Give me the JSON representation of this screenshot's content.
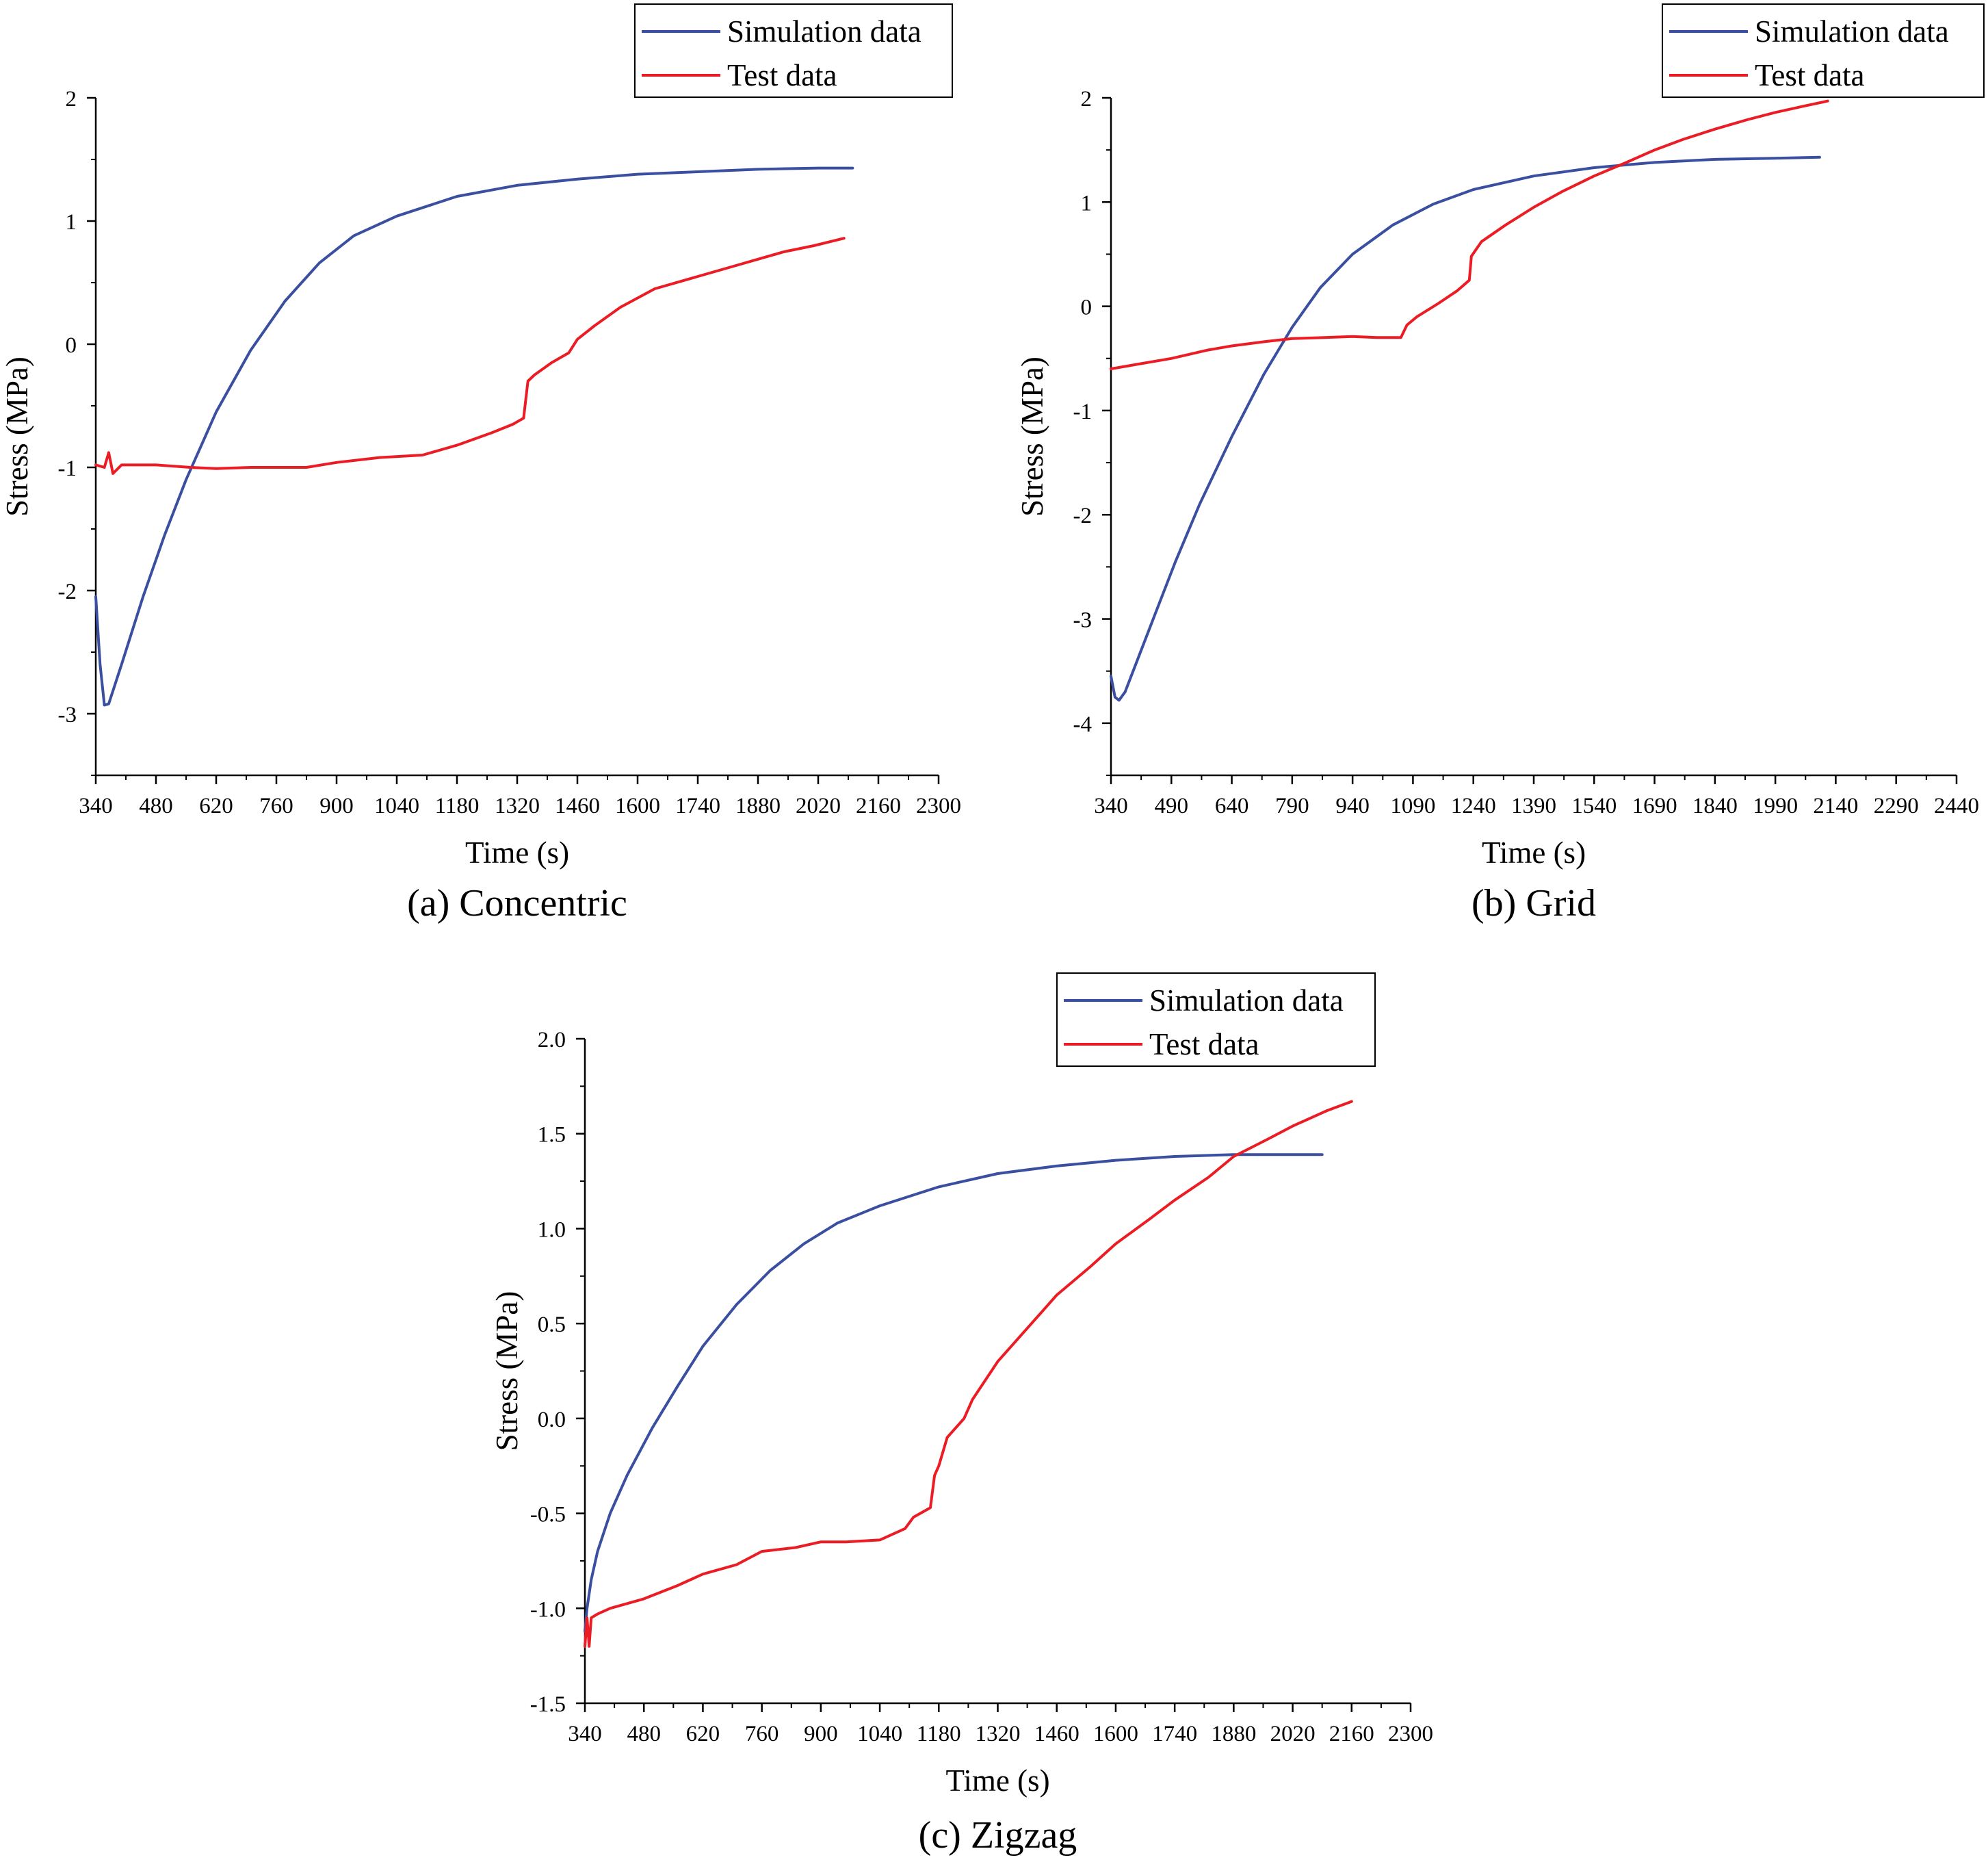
{
  "colors": {
    "simulation": "#3a4fa0",
    "test": "#ec1c24",
    "axis": "#000000"
  },
  "chart_data": [
    {
      "type": "line",
      "caption": "(a) Concentric",
      "xlabel": "Time (s)",
      "ylabel": "Stress (MPa)",
      "xlim": [
        340,
        2300
      ],
      "ylim": [
        -3.5,
        2
      ],
      "x_ticks": [
        340,
        480,
        620,
        760,
        900,
        1040,
        1180,
        1320,
        1460,
        1600,
        1740,
        1880,
        2020,
        2160,
        2300
      ],
      "y_ticks": [
        -3,
        -2,
        -1,
        0,
        1,
        2
      ],
      "y_tick_labels": [
        "-3",
        "-2",
        "-1",
        "0",
        "1",
        "2"
      ],
      "legend": {
        "position": "top-right",
        "entries": [
          "Simulation data",
          "Test data"
        ]
      },
      "series": [
        {
          "name": "Simulation data",
          "x": [
            340,
            350,
            360,
            370,
            400,
            450,
            500,
            550,
            620,
            700,
            780,
            860,
            940,
            1040,
            1180,
            1320,
            1460,
            1600,
            1740,
            1880,
            2020,
            2100
          ],
          "y": [
            -2.05,
            -2.6,
            -2.93,
            -2.92,
            -2.6,
            -2.05,
            -1.55,
            -1.1,
            -0.55,
            -0.05,
            0.35,
            0.66,
            0.88,
            1.04,
            1.2,
            1.29,
            1.34,
            1.38,
            1.4,
            1.42,
            1.43,
            1.43
          ]
        },
        {
          "name": "Test data",
          "x": [
            340,
            360,
            370,
            380,
            400,
            480,
            560,
            620,
            700,
            760,
            830,
            900,
            1000,
            1100,
            1180,
            1260,
            1310,
            1335,
            1345,
            1360,
            1400,
            1440,
            1460,
            1500,
            1560,
            1640,
            1740,
            1840,
            1940,
            2010,
            2080
          ],
          "y": [
            -0.98,
            -1.0,
            -0.88,
            -1.05,
            -0.98,
            -0.98,
            -1.0,
            -1.01,
            -1.0,
            -1.0,
            -1.0,
            -0.96,
            -0.92,
            -0.9,
            -0.82,
            -0.72,
            -0.65,
            -0.6,
            -0.3,
            -0.25,
            -0.15,
            -0.07,
            0.04,
            0.15,
            0.3,
            0.45,
            0.55,
            0.65,
            0.75,
            0.8,
            0.86
          ]
        }
      ]
    },
    {
      "type": "line",
      "caption": "(b) Grid",
      "xlabel": "Time (s)",
      "ylabel": "Stress (MPa)",
      "xlim": [
        340,
        2440
      ],
      "ylim": [
        -4.5,
        2
      ],
      "x_ticks": [
        340,
        490,
        640,
        790,
        940,
        1090,
        1240,
        1390,
        1540,
        1690,
        1840,
        1990,
        2140,
        2290,
        2440
      ],
      "y_ticks": [
        -4,
        -3,
        -2,
        -1,
        0,
        1,
        2
      ],
      "y_tick_labels": [
        "-4",
        "-3",
        "-2",
        "-1",
        "0",
        "1",
        "2"
      ],
      "legend": {
        "position": "top-right",
        "entries": [
          "Simulation data",
          "Test data"
        ]
      },
      "series": [
        {
          "name": "Simulation data",
          "x": [
            340,
            350,
            360,
            375,
            400,
            450,
            500,
            560,
            640,
            720,
            790,
            860,
            940,
            1040,
            1140,
            1240,
            1390,
            1540,
            1690,
            1840,
            1990,
            2100
          ],
          "y": [
            -3.55,
            -3.75,
            -3.78,
            -3.7,
            -3.45,
            -2.95,
            -2.45,
            -1.9,
            -1.25,
            -0.65,
            -0.2,
            0.18,
            0.5,
            0.78,
            0.98,
            1.12,
            1.25,
            1.33,
            1.38,
            1.41,
            1.42,
            1.43
          ]
        },
        {
          "name": "Test data",
          "x": [
            340,
            400,
            490,
            580,
            640,
            720,
            790,
            870,
            940,
            1000,
            1060,
            1075,
            1100,
            1150,
            1200,
            1230,
            1235,
            1260,
            1320,
            1390,
            1460,
            1540,
            1620,
            1690,
            1760,
            1840,
            1920,
            1990,
            2060,
            2120
          ],
          "y": [
            -0.6,
            -0.56,
            -0.5,
            -0.42,
            -0.38,
            -0.34,
            -0.31,
            -0.3,
            -0.29,
            -0.3,
            -0.3,
            -0.18,
            -0.1,
            0.02,
            0.15,
            0.25,
            0.48,
            0.62,
            0.78,
            0.95,
            1.1,
            1.25,
            1.38,
            1.5,
            1.6,
            1.7,
            1.79,
            1.86,
            1.92,
            1.97
          ]
        }
      ]
    },
    {
      "type": "line",
      "caption": "(c) Zigzag",
      "xlabel": "Time (s)",
      "ylabel": "Stress (MPa)",
      "xlim": [
        340,
        2300
      ],
      "ylim": [
        -1.5,
        2.0
      ],
      "x_ticks": [
        340,
        480,
        620,
        760,
        900,
        1040,
        1180,
        1320,
        1460,
        1600,
        1740,
        1880,
        2020,
        2160,
        2300
      ],
      "y_ticks": [
        -1.5,
        -1.0,
        -0.5,
        0.0,
        0.5,
        1.0,
        1.5,
        2.0
      ],
      "y_tick_labels": [
        "-1.5",
        "-1.0",
        "-0.5",
        "0.0",
        "0.5",
        "1.0",
        "1.5",
        "2.0"
      ],
      "legend": {
        "position": "top-right",
        "entries": [
          "Simulation data",
          "Test data"
        ]
      },
      "series": [
        {
          "name": "Simulation data",
          "x": [
            340,
            345,
            355,
            370,
            400,
            440,
            500,
            560,
            620,
            700,
            780,
            860,
            940,
            1040,
            1180,
            1320,
            1460,
            1600,
            1740,
            1880,
            2020,
            2090
          ],
          "y": [
            -1.12,
            -1.0,
            -0.85,
            -0.7,
            -0.5,
            -0.3,
            -0.05,
            0.17,
            0.38,
            0.6,
            0.78,
            0.92,
            1.03,
            1.12,
            1.22,
            1.29,
            1.33,
            1.36,
            1.38,
            1.39,
            1.39,
            1.39
          ]
        },
        {
          "name": "Test data",
          "x": [
            340,
            345,
            350,
            355,
            370,
            400,
            480,
            560,
            620,
            700,
            760,
            840,
            900,
            960,
            1040,
            1100,
            1120,
            1160,
            1170,
            1180,
            1200,
            1240,
            1260,
            1320,
            1400,
            1460,
            1540,
            1600,
            1680,
            1740,
            1820,
            1880,
            1960,
            2020,
            2100,
            2160
          ],
          "y": [
            -1.2,
            -1.05,
            -1.2,
            -1.05,
            -1.03,
            -1.0,
            -0.95,
            -0.88,
            -0.82,
            -0.77,
            -0.7,
            -0.68,
            -0.65,
            -0.65,
            -0.64,
            -0.58,
            -0.52,
            -0.47,
            -0.3,
            -0.25,
            -0.1,
            0.0,
            0.1,
            0.3,
            0.5,
            0.65,
            0.8,
            0.92,
            1.05,
            1.15,
            1.27,
            1.38,
            1.47,
            1.54,
            1.62,
            1.67
          ]
        }
      ]
    }
  ]
}
